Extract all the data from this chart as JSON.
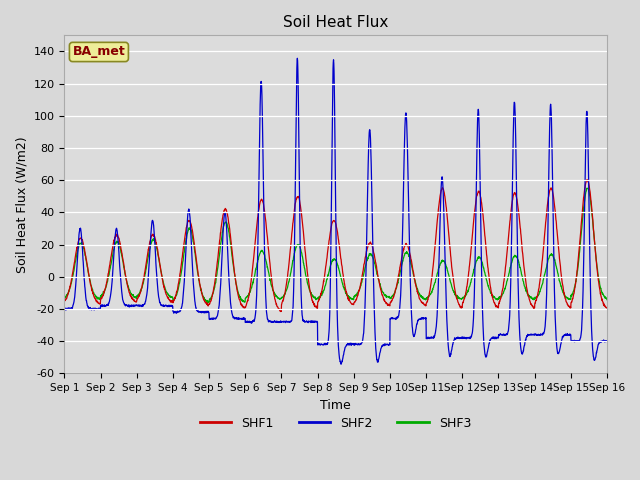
{
  "title": "Soil Heat Flux",
  "xlabel": "Time",
  "ylabel": "Soil Heat Flux (W/m2)",
  "ylim": [
    -60,
    150
  ],
  "yticks": [
    -60,
    -40,
    -20,
    0,
    20,
    40,
    60,
    80,
    100,
    120,
    140
  ],
  "background_color": "#dcdcdc",
  "plot_bg_color": "#dcdcdc",
  "shf1_color": "#cc0000",
  "shf2_color": "#0000cc",
  "shf3_color": "#00aa00",
  "legend_label": "BA_met",
  "legend_text_color": "#880000",
  "legend_box_color": "#eeee99"
}
